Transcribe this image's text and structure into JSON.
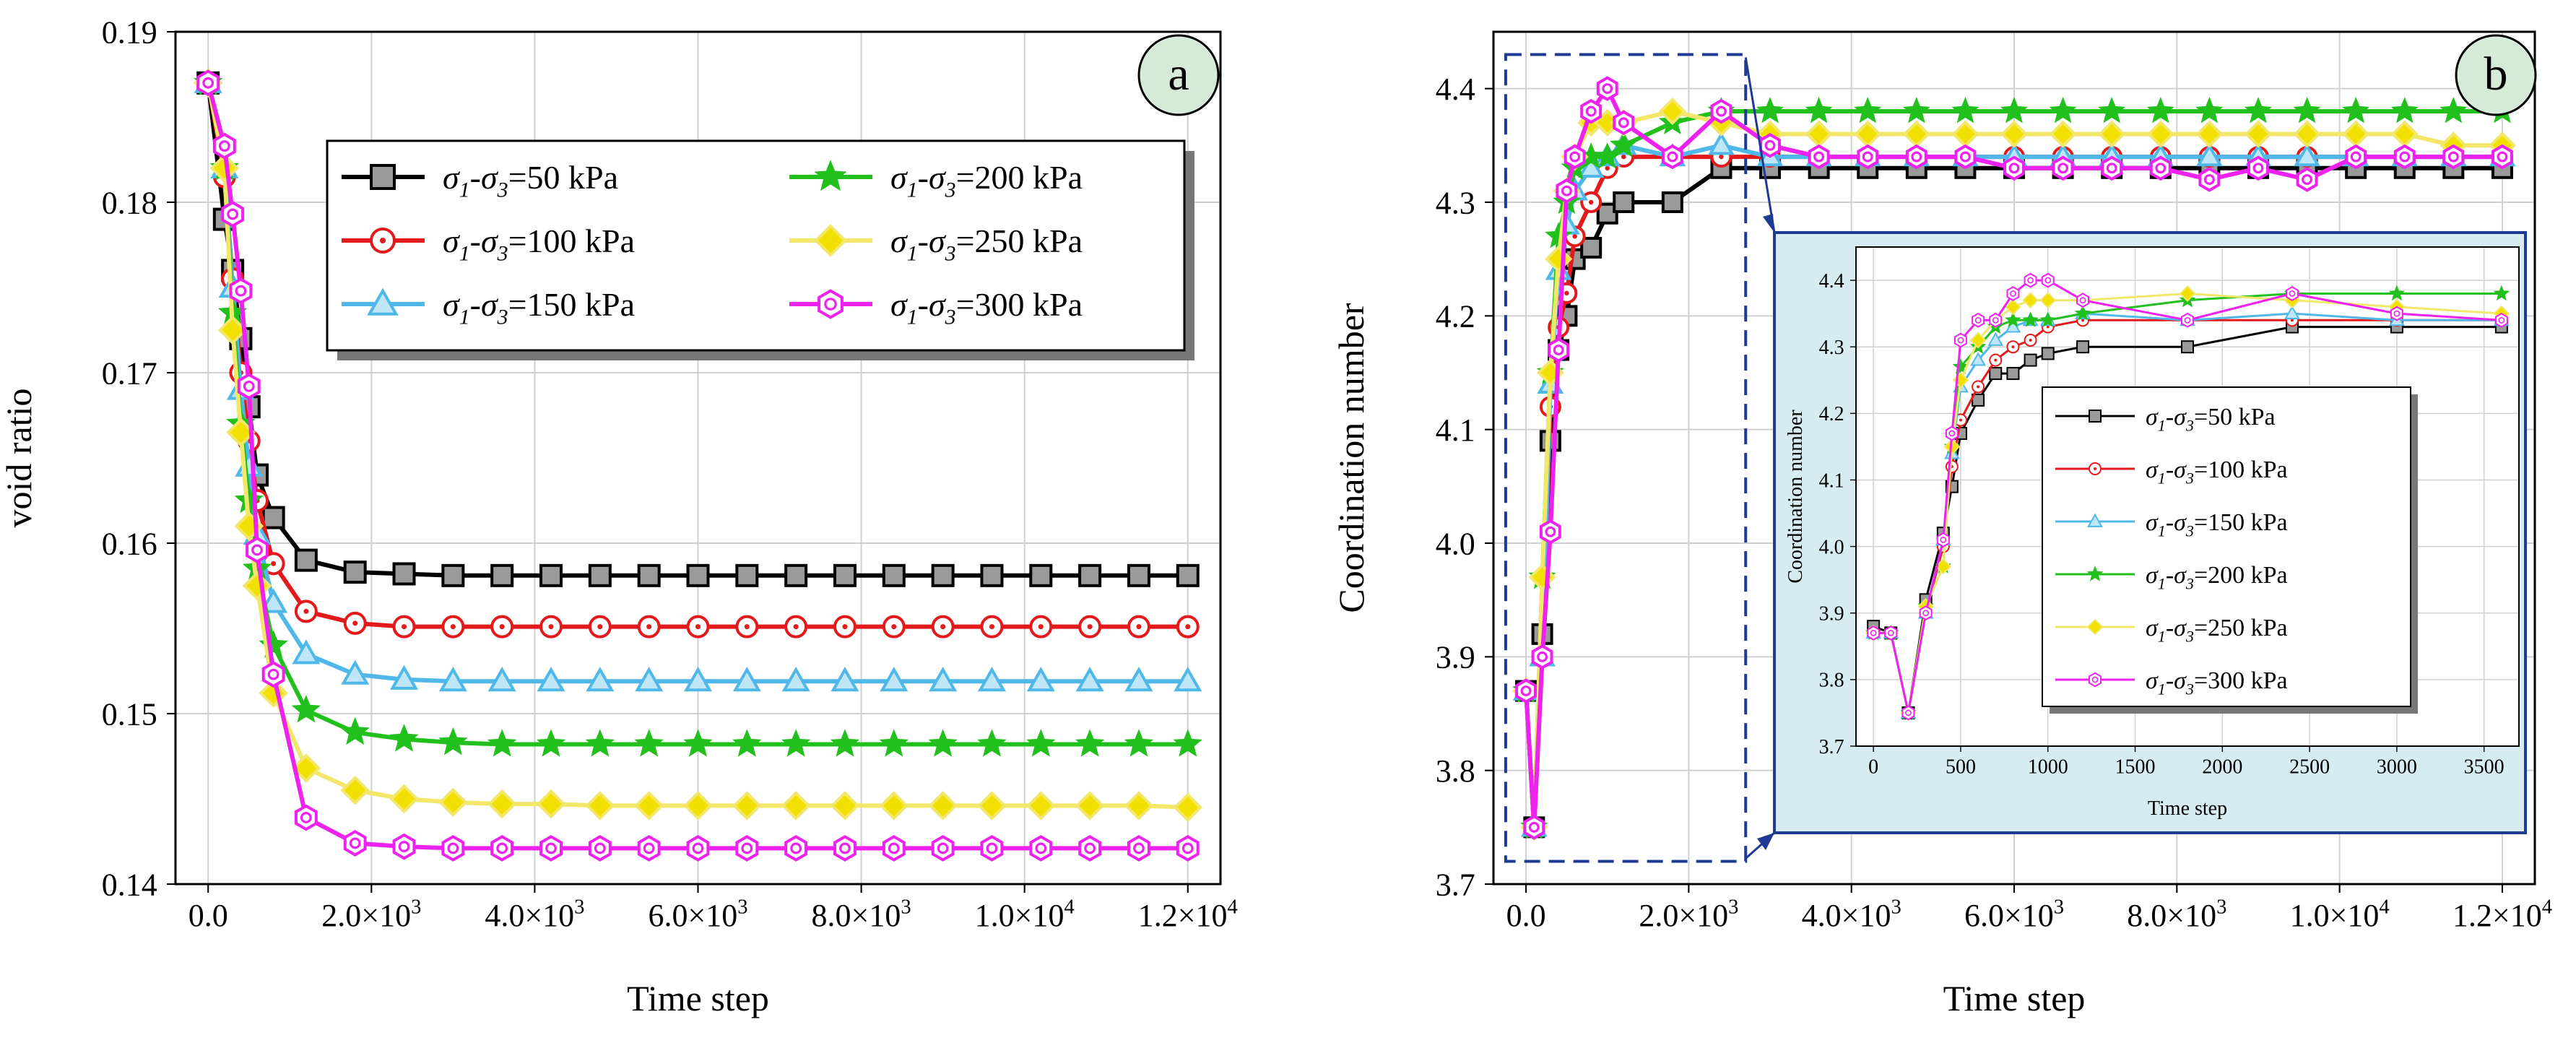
{
  "panel_a_label": "a",
  "panel_b_label": "b",
  "sigma_char": "σ",
  "colors": {
    "s50": "#000000",
    "s50_fill": "#9a9a9a",
    "s100": "#e31a1c",
    "s100_fill": "#ffffff",
    "s150": "#4fb8e8",
    "s150_fill": "#bfe6f7",
    "s200": "#22c01c",
    "s200_fill": "#22c01c",
    "s250": "#f2e76a",
    "s250_fill": "#f2e000",
    "s300": "#ee22ee",
    "s300_fill": "#ffffff",
    "grid": "#d0d0d0",
    "panel_label_bg": "#d6ead8",
    "inset_bg": "#d6ecf2",
    "inset_border": "#1f3a93"
  },
  "chart_data": [
    {
      "id": "a",
      "type": "line",
      "ylabel": "void ratio",
      "xlabel": "Time step",
      "xlim": [
        -400,
        12400
      ],
      "ylim": [
        0.14,
        0.19
      ],
      "x_ticks": [
        0,
        2000,
        4000,
        6000,
        8000,
        10000,
        12000
      ],
      "x_tick_labels": [
        {
          "m": "0.0",
          "e": ""
        },
        {
          "m": "2.0×10",
          "e": "3"
        },
        {
          "m": "4.0×10",
          "e": "3"
        },
        {
          "m": "6.0×10",
          "e": "3"
        },
        {
          "m": "8.0×10",
          "e": "3"
        },
        {
          "m": "1.0×10",
          "e": "4"
        },
        {
          "m": "1.2×10",
          "e": "4"
        }
      ],
      "y_ticks": [
        0.14,
        0.15,
        0.16,
        0.17,
        0.18,
        0.19
      ],
      "y_tick_labels": [
        "0.14",
        "0.15",
        "0.16",
        "0.17",
        "0.18",
        "0.19"
      ],
      "legend": {
        "position": "top-right",
        "columns": 2
      },
      "x": [
        0,
        200,
        300,
        400,
        500,
        600,
        800,
        1200,
        1800,
        2400,
        3000,
        3600,
        4200,
        4800,
        5400,
        6000,
        6600,
        7200,
        7800,
        8400,
        9000,
        9600,
        10200,
        10800,
        11400,
        12000
      ],
      "series": [
        {
          "name": "50",
          "label": "-σ",
          "sub3": "3",
          "pre": "σ",
          "sub1": "1",
          "value_text": "=50 kPa",
          "color_key": "s50",
          "fill_key": "s50_fill",
          "marker": "square",
          "values": [
            0.187,
            0.179,
            0.176,
            0.172,
            0.168,
            0.164,
            0.1615,
            0.159,
            0.1583,
            0.1582,
            0.1581,
            0.1581,
            0.1581,
            0.1581,
            0.1581,
            0.1581,
            0.1581,
            0.1581,
            0.1581,
            0.1581,
            0.1581,
            0.1581,
            0.1581,
            0.1581,
            0.1581,
            0.1581
          ]
        },
        {
          "name": "100",
          "label": "-σ",
          "sub3": "3",
          "pre": "σ",
          "sub1": "1",
          "value_text": "=100 kPa",
          "color_key": "s100",
          "fill_key": "s100_fill",
          "marker": "circle",
          "values": [
            0.187,
            0.1815,
            0.1755,
            0.17,
            0.166,
            0.1625,
            0.1588,
            0.156,
            0.1553,
            0.1551,
            0.1551,
            0.1551,
            0.1551,
            0.1551,
            0.1551,
            0.1551,
            0.1551,
            0.1551,
            0.1551,
            0.1551,
            0.1551,
            0.1551,
            0.1551,
            0.1551,
            0.1551,
            0.1551
          ]
        },
        {
          "name": "150",
          "label": "-σ",
          "sub3": "3",
          "pre": "σ",
          "sub1": "1",
          "value_text": "=150 kPa",
          "color_key": "s150",
          "fill_key": "s150_fill",
          "marker": "triangle",
          "values": [
            0.187,
            0.182,
            0.175,
            0.169,
            0.1645,
            0.1605,
            0.1565,
            0.1535,
            0.1523,
            0.152,
            0.1519,
            0.1519,
            0.1519,
            0.1519,
            0.1519,
            0.1519,
            0.1519,
            0.1519,
            0.1519,
            0.1519,
            0.1519,
            0.1519,
            0.1519,
            0.1519,
            0.1519,
            0.1519
          ]
        },
        {
          "name": "200",
          "label": "-σ",
          "sub3": "3",
          "pre": "σ",
          "sub1": "1",
          "value_text": "=200 kPa",
          "color_key": "s200",
          "fill_key": "s200_fill",
          "marker": "star",
          "values": [
            0.187,
            0.182,
            0.1735,
            0.167,
            0.1625,
            0.1585,
            0.154,
            0.1502,
            0.1489,
            0.1485,
            0.1483,
            0.1482,
            0.1482,
            0.1482,
            0.1482,
            0.1482,
            0.1482,
            0.1482,
            0.1482,
            0.1482,
            0.1482,
            0.1482,
            0.1482,
            0.1482,
            0.1482,
            0.1482
          ]
        },
        {
          "name": "250",
          "label": "-σ",
          "sub3": "3",
          "pre": "σ",
          "sub1": "1",
          "value_text": "=250 kPa",
          "color_key": "s250",
          "fill_key": "s250_fill",
          "marker": "diamond",
          "values": [
            0.187,
            0.182,
            0.1725,
            0.1665,
            0.161,
            0.1575,
            0.1512,
            0.1468,
            0.1455,
            0.145,
            0.1448,
            0.1447,
            0.1447,
            0.1446,
            0.1446,
            0.1446,
            0.1446,
            0.1446,
            0.1446,
            0.1446,
            0.1446,
            0.1446,
            0.1446,
            0.1446,
            0.1446,
            0.1445
          ]
        },
        {
          "name": "300",
          "label": "-σ",
          "sub3": "3",
          "pre": "σ",
          "sub1": "1",
          "value_text": "=300 kPa",
          "color_key": "s300",
          "fill_key": "s300_fill",
          "marker": "hexagon",
          "values": [
            0.187,
            0.1833,
            0.1793,
            0.1748,
            0.1692,
            0.1596,
            0.1523,
            0.1439,
            0.1424,
            0.1422,
            0.1421,
            0.1421,
            0.1421,
            0.1421,
            0.1421,
            0.1421,
            0.1421,
            0.1421,
            0.1421,
            0.1421,
            0.1421,
            0.1421,
            0.1421,
            0.1421,
            0.1421,
            0.1421
          ]
        }
      ]
    },
    {
      "id": "b",
      "type": "line",
      "ylabel": "Coordination number",
      "xlabel": "Time step",
      "xlim": [
        -400,
        12400
      ],
      "ylim": [
        3.7,
        4.45
      ],
      "x_ticks": [
        0,
        2000,
        4000,
        6000,
        8000,
        10000,
        12000
      ],
      "x_tick_labels": [
        {
          "m": "0.0",
          "e": ""
        },
        {
          "m": "2.0×10",
          "e": "3"
        },
        {
          "m": "4.0×10",
          "e": "3"
        },
        {
          "m": "6.0×10",
          "e": "3"
        },
        {
          "m": "8.0×10",
          "e": "3"
        },
        {
          "m": "1.0×10",
          "e": "4"
        },
        {
          "m": "1.2×10",
          "e": "4"
        }
      ],
      "y_ticks": [
        3.7,
        3.8,
        3.9,
        4.0,
        4.1,
        4.2,
        4.3,
        4.4
      ],
      "y_tick_labels": [
        "3.7",
        "3.8",
        "3.9",
        "4.0",
        "4.1",
        "4.2",
        "4.3",
        "4.4"
      ],
      "zoom_box_xrange": [
        -250,
        2700
      ],
      "zoom_box_yrange": [
        3.72,
        4.43
      ],
      "x": [
        0,
        100,
        200,
        300,
        400,
        500,
        600,
        800,
        1000,
        1200,
        1800,
        2400,
        3000,
        3600,
        4200,
        4800,
        5400,
        6000,
        6600,
        7200,
        7800,
        8400,
        9000,
        9600,
        10200,
        10800,
        11400,
        12000
      ],
      "series": [
        {
          "name": "50",
          "color_key": "s50",
          "fill_key": "s50_fill",
          "marker": "square",
          "values": [
            3.87,
            3.75,
            3.92,
            4.09,
            4.17,
            4.2,
            4.25,
            4.26,
            4.29,
            4.3,
            4.3,
            4.33,
            4.33,
            4.33,
            4.33,
            4.33,
            4.33,
            4.33,
            4.33,
            4.33,
            4.33,
            4.33,
            4.33,
            4.33,
            4.33,
            4.33,
            4.33,
            4.33
          ]
        },
        {
          "name": "100",
          "color_key": "s100",
          "fill_key": "s100_fill",
          "marker": "circle",
          "values": [
            3.87,
            3.75,
            3.9,
            4.12,
            4.19,
            4.22,
            4.27,
            4.3,
            4.33,
            4.34,
            4.34,
            4.34,
            4.34,
            4.34,
            4.34,
            4.34,
            4.34,
            4.34,
            4.34,
            4.34,
            4.34,
            4.34,
            4.34,
            4.34,
            4.34,
            4.34,
            4.34,
            4.34
          ]
        },
        {
          "name": "150",
          "color_key": "s150",
          "fill_key": "s150_fill",
          "marker": "triangle",
          "values": [
            3.87,
            3.75,
            3.9,
            4.14,
            4.24,
            4.28,
            4.31,
            4.33,
            4.34,
            4.35,
            4.34,
            4.35,
            4.34,
            4.34,
            4.34,
            4.34,
            4.34,
            4.34,
            4.34,
            4.34,
            4.34,
            4.34,
            4.34,
            4.34,
            4.34,
            4.34,
            4.34,
            4.34
          ]
        },
        {
          "name": "200",
          "color_key": "s200",
          "fill_key": "s200_fill",
          "marker": "star",
          "values": [
            3.87,
            3.75,
            3.97,
            4.15,
            4.27,
            4.3,
            4.33,
            4.34,
            4.34,
            4.35,
            4.37,
            4.38,
            4.38,
            4.38,
            4.38,
            4.38,
            4.38,
            4.38,
            4.38,
            4.38,
            4.38,
            4.38,
            4.38,
            4.38,
            4.38,
            4.38,
            4.38,
            4.38
          ]
        },
        {
          "name": "250",
          "color_key": "s250",
          "fill_key": "s250_fill",
          "marker": "diamond",
          "values": [
            3.87,
            3.75,
            3.97,
            4.15,
            4.25,
            4.31,
            4.34,
            4.37,
            4.37,
            4.37,
            4.38,
            4.37,
            4.36,
            4.36,
            4.36,
            4.36,
            4.36,
            4.36,
            4.36,
            4.36,
            4.36,
            4.36,
            4.36,
            4.36,
            4.36,
            4.36,
            4.35,
            4.35
          ]
        },
        {
          "name": "300",
          "color_key": "s300",
          "fill_key": "s300_fill",
          "marker": "hexagon",
          "values": [
            3.87,
            3.75,
            3.9,
            4.01,
            4.17,
            4.31,
            4.34,
            4.38,
            4.4,
            4.37,
            4.34,
            4.38,
            4.35,
            4.34,
            4.34,
            4.34,
            4.34,
            4.33,
            4.33,
            4.33,
            4.33,
            4.32,
            4.33,
            4.32,
            4.34,
            4.34,
            4.34,
            4.34
          ]
        }
      ]
    },
    {
      "id": "b-inset",
      "type": "line",
      "ylabel": "Coordination number",
      "xlabel": "Time step",
      "xlim": [
        -100,
        3700
      ],
      "ylim": [
        3.7,
        4.45
      ],
      "x_ticks": [
        0,
        500,
        1000,
        1500,
        2000,
        2500,
        3000,
        3500
      ],
      "x_tick_labels": [
        {
          "m": "0",
          "e": ""
        },
        {
          "m": "500",
          "e": ""
        },
        {
          "m": "1000",
          "e": ""
        },
        {
          "m": "1500",
          "e": ""
        },
        {
          "m": "2000",
          "e": ""
        },
        {
          "m": "2500",
          "e": ""
        },
        {
          "m": "3000",
          "e": ""
        },
        {
          "m": "3500",
          "e": ""
        }
      ],
      "y_ticks": [
        3.7,
        3.8,
        3.9,
        4.0,
        4.1,
        4.2,
        4.3,
        4.4
      ],
      "y_tick_labels": [
        "3.7",
        "3.8",
        "3.9",
        "4.0",
        "4.1",
        "4.2",
        "4.3",
        "4.4"
      ],
      "legend": {
        "position": "bottom-right",
        "columns": 1
      },
      "x": [
        0,
        100,
        200,
        300,
        400,
        450,
        500,
        600,
        700,
        800,
        900,
        1000,
        1200,
        1800,
        2400,
        3000,
        3600
      ],
      "series": [
        {
          "name": "50",
          "label": "-σ",
          "sub3": "3",
          "pre": "σ",
          "sub1": "1",
          "value_text": "=50 kPa",
          "color_key": "s50",
          "fill_key": "s50_fill",
          "marker": "square",
          "values": [
            3.88,
            3.87,
            3.75,
            3.92,
            4.02,
            4.09,
            4.17,
            4.22,
            4.26,
            4.26,
            4.28,
            4.29,
            4.3,
            4.3,
            4.33,
            4.33,
            4.33
          ]
        },
        {
          "name": "100",
          "label": "-σ",
          "sub3": "3",
          "pre": "σ",
          "sub1": "1",
          "value_text": "=100 kPa",
          "color_key": "s100",
          "fill_key": "s100_fill",
          "marker": "circle",
          "values": [
            3.87,
            3.87,
            3.75,
            3.9,
            4.0,
            4.12,
            4.19,
            4.24,
            4.28,
            4.3,
            4.31,
            4.33,
            4.34,
            4.34,
            4.34,
            4.34,
            4.34
          ]
        },
        {
          "name": "150",
          "label": "-σ",
          "sub3": "3",
          "pre": "σ",
          "sub1": "1",
          "value_text": "=150 kPa",
          "color_key": "s150",
          "fill_key": "s150_fill",
          "marker": "triangle",
          "values": [
            3.87,
            3.87,
            3.75,
            3.9,
            4.01,
            4.14,
            4.24,
            4.28,
            4.31,
            4.33,
            4.34,
            4.34,
            4.35,
            4.34,
            4.35,
            4.34,
            4.34
          ]
        },
        {
          "name": "200",
          "label": "-σ",
          "sub3": "3",
          "pre": "σ",
          "sub1": "1",
          "value_text": "=200 kPa",
          "color_key": "s200",
          "fill_key": "s200_fill",
          "marker": "star",
          "values": [
            3.87,
            3.87,
            3.75,
            3.91,
            3.97,
            4.15,
            4.27,
            4.3,
            4.33,
            4.34,
            4.34,
            4.34,
            4.35,
            4.37,
            4.38,
            4.38,
            4.38
          ]
        },
        {
          "name": "250",
          "label": "-σ",
          "sub3": "3",
          "pre": "σ",
          "sub1": "1",
          "value_text": "=250 kPa",
          "color_key": "s250",
          "fill_key": "s250_fill",
          "marker": "diamond",
          "values": [
            3.87,
            3.87,
            3.75,
            3.91,
            3.97,
            4.15,
            4.25,
            4.31,
            4.34,
            4.36,
            4.37,
            4.37,
            4.37,
            4.38,
            4.37,
            4.36,
            4.35
          ]
        },
        {
          "name": "300",
          "label": "-σ",
          "sub3": "3",
          "pre": "σ",
          "sub1": "1",
          "value_text": "=300 kPa",
          "color_key": "s300",
          "fill_key": "s300_fill",
          "marker": "hexagon",
          "values": [
            3.87,
            3.87,
            3.75,
            3.9,
            4.01,
            4.17,
            4.31,
            4.34,
            4.34,
            4.38,
            4.4,
            4.4,
            4.37,
            4.34,
            4.38,
            4.35,
            4.34
          ]
        }
      ]
    }
  ]
}
